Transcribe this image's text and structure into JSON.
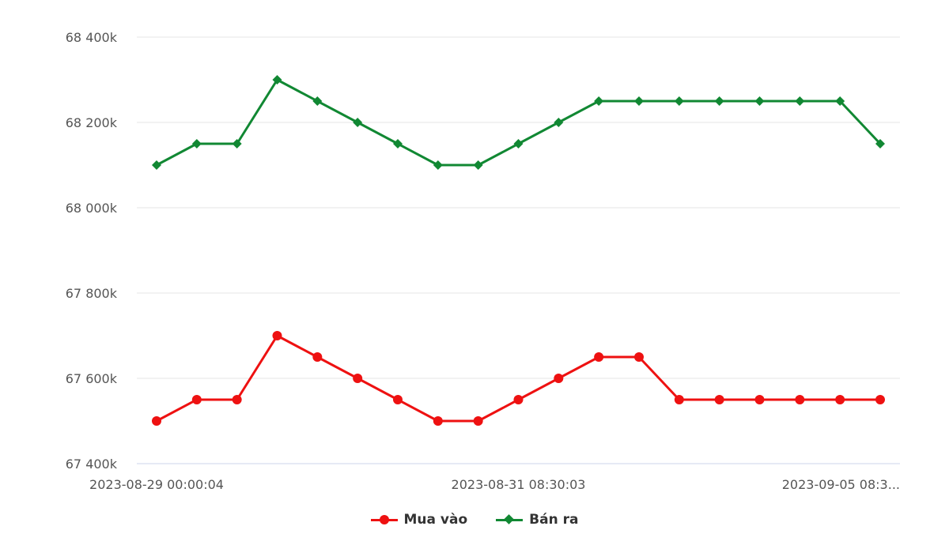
{
  "chart_data": {
    "type": "line",
    "x_labels_shown": [
      "2023-08-29 00:00:04",
      "2023-08-31 08:30:03",
      "2023-09-05 08:3..."
    ],
    "y_ticks": [
      "67 400k",
      "67 600k",
      "67 800k",
      "68 000k",
      "68 200k",
      "68 400k"
    ],
    "ylim": [
      67400,
      68400
    ],
    "y_tick_values": [
      67400,
      67600,
      67800,
      68000,
      68200,
      68400
    ],
    "grid": true,
    "legend_position": "bottom-center",
    "series": [
      {
        "name": "Mua vào",
        "color": "#ee1111",
        "marker": "circle",
        "values": [
          67500,
          67550,
          67550,
          67700,
          67650,
          67600,
          67550,
          67500,
          67500,
          67550,
          67600,
          67650,
          67650,
          67550,
          67550,
          67550,
          67550,
          67550,
          67550
        ]
      },
      {
        "name": "Bán ra",
        "color": "#118833",
        "marker": "diamond",
        "values": [
          68100,
          68150,
          68150,
          68300,
          68250,
          68200,
          68150,
          68100,
          68100,
          68150,
          68200,
          68250,
          68250,
          68250,
          68250,
          68250,
          68250,
          68250,
          68150
        ]
      }
    ]
  }
}
